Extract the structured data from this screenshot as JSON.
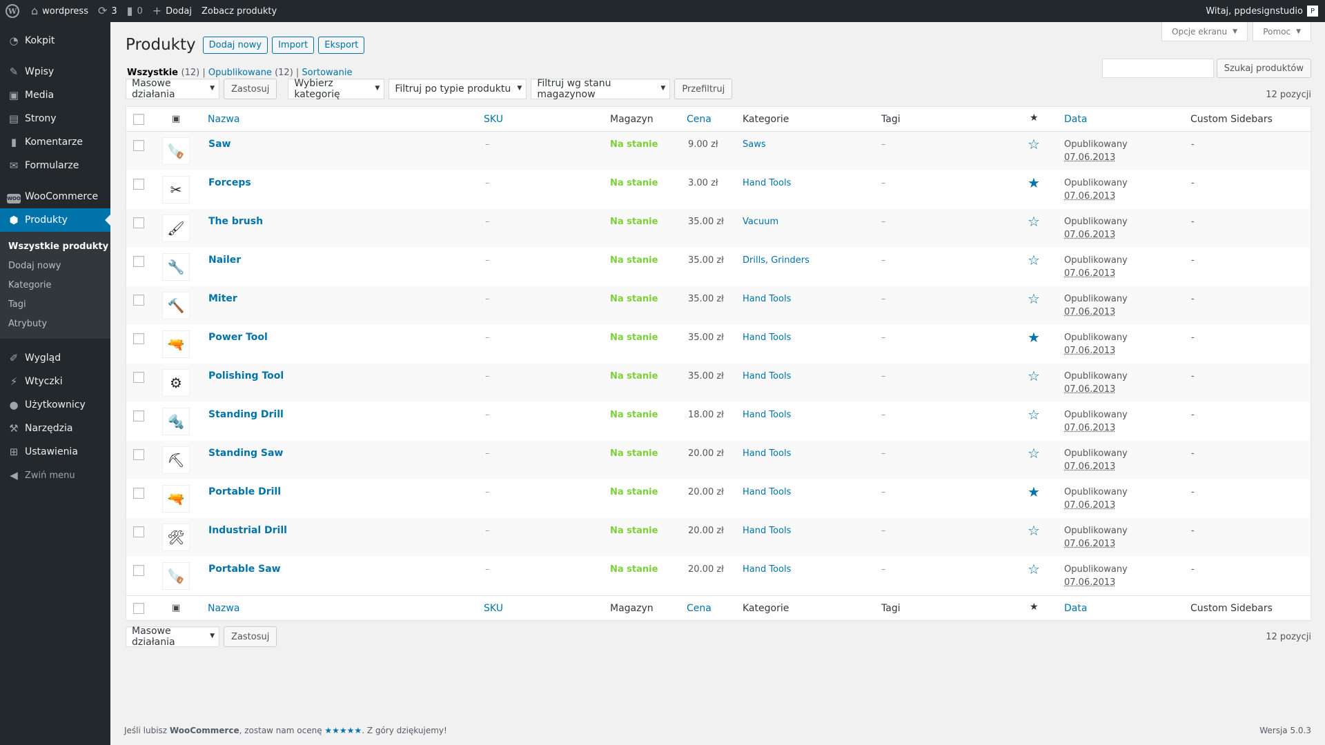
{
  "admin_bar": {
    "site_name": "wordpress",
    "updates_count": "3",
    "comments_count": "0",
    "add_label": "Dodaj",
    "view_label": "Zobacz produkty",
    "greeting": "Witaj, ppdesignstudio"
  },
  "sidebar": {
    "items": [
      {
        "label": "Kokpit",
        "icon": "dashboard-icon"
      },
      {
        "label": "Wpisy",
        "icon": "pin-icon"
      },
      {
        "label": "Media",
        "icon": "media-icon"
      },
      {
        "label": "Strony",
        "icon": "pages-icon"
      },
      {
        "label": "Komentarze",
        "icon": "comment-icon"
      },
      {
        "label": "Formularze",
        "icon": "mail-icon"
      },
      {
        "label": "WooCommerce",
        "icon": "woo-icon"
      },
      {
        "label": "Produkty",
        "icon": "product-icon"
      },
      {
        "label": "Wygląd",
        "icon": "brush-icon"
      },
      {
        "label": "Wtyczki",
        "icon": "plugin-icon"
      },
      {
        "label": "Użytkownicy",
        "icon": "user-icon"
      },
      {
        "label": "Narzędzia",
        "icon": "wrench-icon"
      },
      {
        "label": "Ustawienia",
        "icon": "settings-icon"
      },
      {
        "label": "Zwiń menu",
        "icon": "collapse-icon"
      }
    ],
    "submenu": [
      "Wszystkie produkty",
      "Dodaj nowy",
      "Kategorie",
      "Tagi",
      "Atrybuty"
    ],
    "woo_badge": "WOO"
  },
  "screen_options": "Opcje ekranu",
  "help": "Pomoc",
  "header": {
    "title": "Produkty",
    "actions": [
      "Dodaj nowy",
      "Import",
      "Eksport"
    ]
  },
  "views": {
    "all": "Wszystkie",
    "all_count": "(12)",
    "published": "Opublikowane",
    "published_count": "(12)",
    "sorting": "Sortowanie"
  },
  "search": {
    "button": "Szukaj produktów",
    "value": ""
  },
  "filters": {
    "bulk": "Masowe działania",
    "apply": "Zastosuj",
    "category": "Wybierz kategorię",
    "type": "Filtruj po typie produktu",
    "stock": "Filtruj wg stanu magazynow",
    "filter_btn": "Przefiltruj",
    "count": "12 pozycji"
  },
  "columns": {
    "name": "Nazwa",
    "sku": "SKU",
    "stock": "Magazyn",
    "price": "Cena",
    "categories": "Kategorie",
    "tags": "Tagi",
    "date": "Data",
    "sidebars": "Custom Sidebars"
  },
  "products": [
    {
      "name": "Saw",
      "sku": "–",
      "stock": "Na stanie",
      "price": "9.00 zł",
      "category": "Saws",
      "tags": "–",
      "featured": false,
      "status": "Opublikowany",
      "date": "07.06.2013",
      "sidebars": "-",
      "thumb": "🪚"
    },
    {
      "name": "Forceps",
      "sku": "–",
      "stock": "Na stanie",
      "price": "3.00 zł",
      "category": "Hand Tools",
      "tags": "–",
      "featured": true,
      "status": "Opublikowany",
      "date": "07.06.2013",
      "sidebars": "-",
      "thumb": "✂"
    },
    {
      "name": "The brush",
      "sku": "–",
      "stock": "Na stanie",
      "price": "35.00 zł",
      "category": "Vacuum",
      "tags": "–",
      "featured": false,
      "status": "Opublikowany",
      "date": "07.06.2013",
      "sidebars": "-",
      "thumb": "🖌"
    },
    {
      "name": "Nailer",
      "sku": "–",
      "stock": "Na stanie",
      "price": "35.00 zł",
      "category": "Drills, Grinders",
      "tags": "–",
      "featured": false,
      "status": "Opublikowany",
      "date": "07.06.2013",
      "sidebars": "-",
      "thumb": "🔧"
    },
    {
      "name": "Miter",
      "sku": "–",
      "stock": "Na stanie",
      "price": "35.00 zł",
      "category": "Hand Tools",
      "tags": "–",
      "featured": false,
      "status": "Opublikowany",
      "date": "07.06.2013",
      "sidebars": "-",
      "thumb": "🔨"
    },
    {
      "name": "Power Tool",
      "sku": "–",
      "stock": "Na stanie",
      "price": "35.00 zł",
      "category": "Hand Tools",
      "tags": "–",
      "featured": true,
      "status": "Opublikowany",
      "date": "07.06.2013",
      "sidebars": "-",
      "thumb": "🔫"
    },
    {
      "name": "Polishing Tool",
      "sku": "–",
      "stock": "Na stanie",
      "price": "35.00 zł",
      "category": "Hand Tools",
      "tags": "–",
      "featured": false,
      "status": "Opublikowany",
      "date": "07.06.2013",
      "sidebars": "-",
      "thumb": "⚙"
    },
    {
      "name": "Standing Drill",
      "sku": "–",
      "stock": "Na stanie",
      "price": "18.00 zł",
      "category": "Hand Tools",
      "tags": "–",
      "featured": false,
      "status": "Opublikowany",
      "date": "07.06.2013",
      "sidebars": "-",
      "thumb": "🔩"
    },
    {
      "name": "Standing Saw",
      "sku": "–",
      "stock": "Na stanie",
      "price": "20.00 zł",
      "category": "Hand Tools",
      "tags": "–",
      "featured": false,
      "status": "Opublikowany",
      "date": "07.06.2013",
      "sidebars": "-",
      "thumb": "⛏"
    },
    {
      "name": "Portable Drill",
      "sku": "–",
      "stock": "Na stanie",
      "price": "20.00 zł",
      "category": "Hand Tools",
      "tags": "–",
      "featured": true,
      "status": "Opublikowany",
      "date": "07.06.2013",
      "sidebars": "-",
      "thumb": "🔫"
    },
    {
      "name": "Industrial Drill",
      "sku": "–",
      "stock": "Na stanie",
      "price": "20.00 zł",
      "category": "Hand Tools",
      "tags": "–",
      "featured": false,
      "status": "Opublikowany",
      "date": "07.06.2013",
      "sidebars": "-",
      "thumb": "🛠"
    },
    {
      "name": "Portable Saw",
      "sku": "–",
      "stock": "Na stanie",
      "price": "20.00 zł",
      "category": "Hand Tools",
      "tags": "–",
      "featured": false,
      "status": "Opublikowany",
      "date": "07.06.2013",
      "sidebars": "-",
      "thumb": "🪚"
    }
  ],
  "footer": {
    "text_pre": "Jeśli lubisz ",
    "brand": "WooCommerce",
    "text_mid": ", zostaw nam ocenę ",
    "stars": "★★★★★",
    "text_post": ". Z góry dziękujemy!",
    "version": "Wersja 5.0.3"
  },
  "colors": {
    "accent": "#0073aa",
    "instock": "#7ad03a",
    "sidebar": "#23282d"
  }
}
